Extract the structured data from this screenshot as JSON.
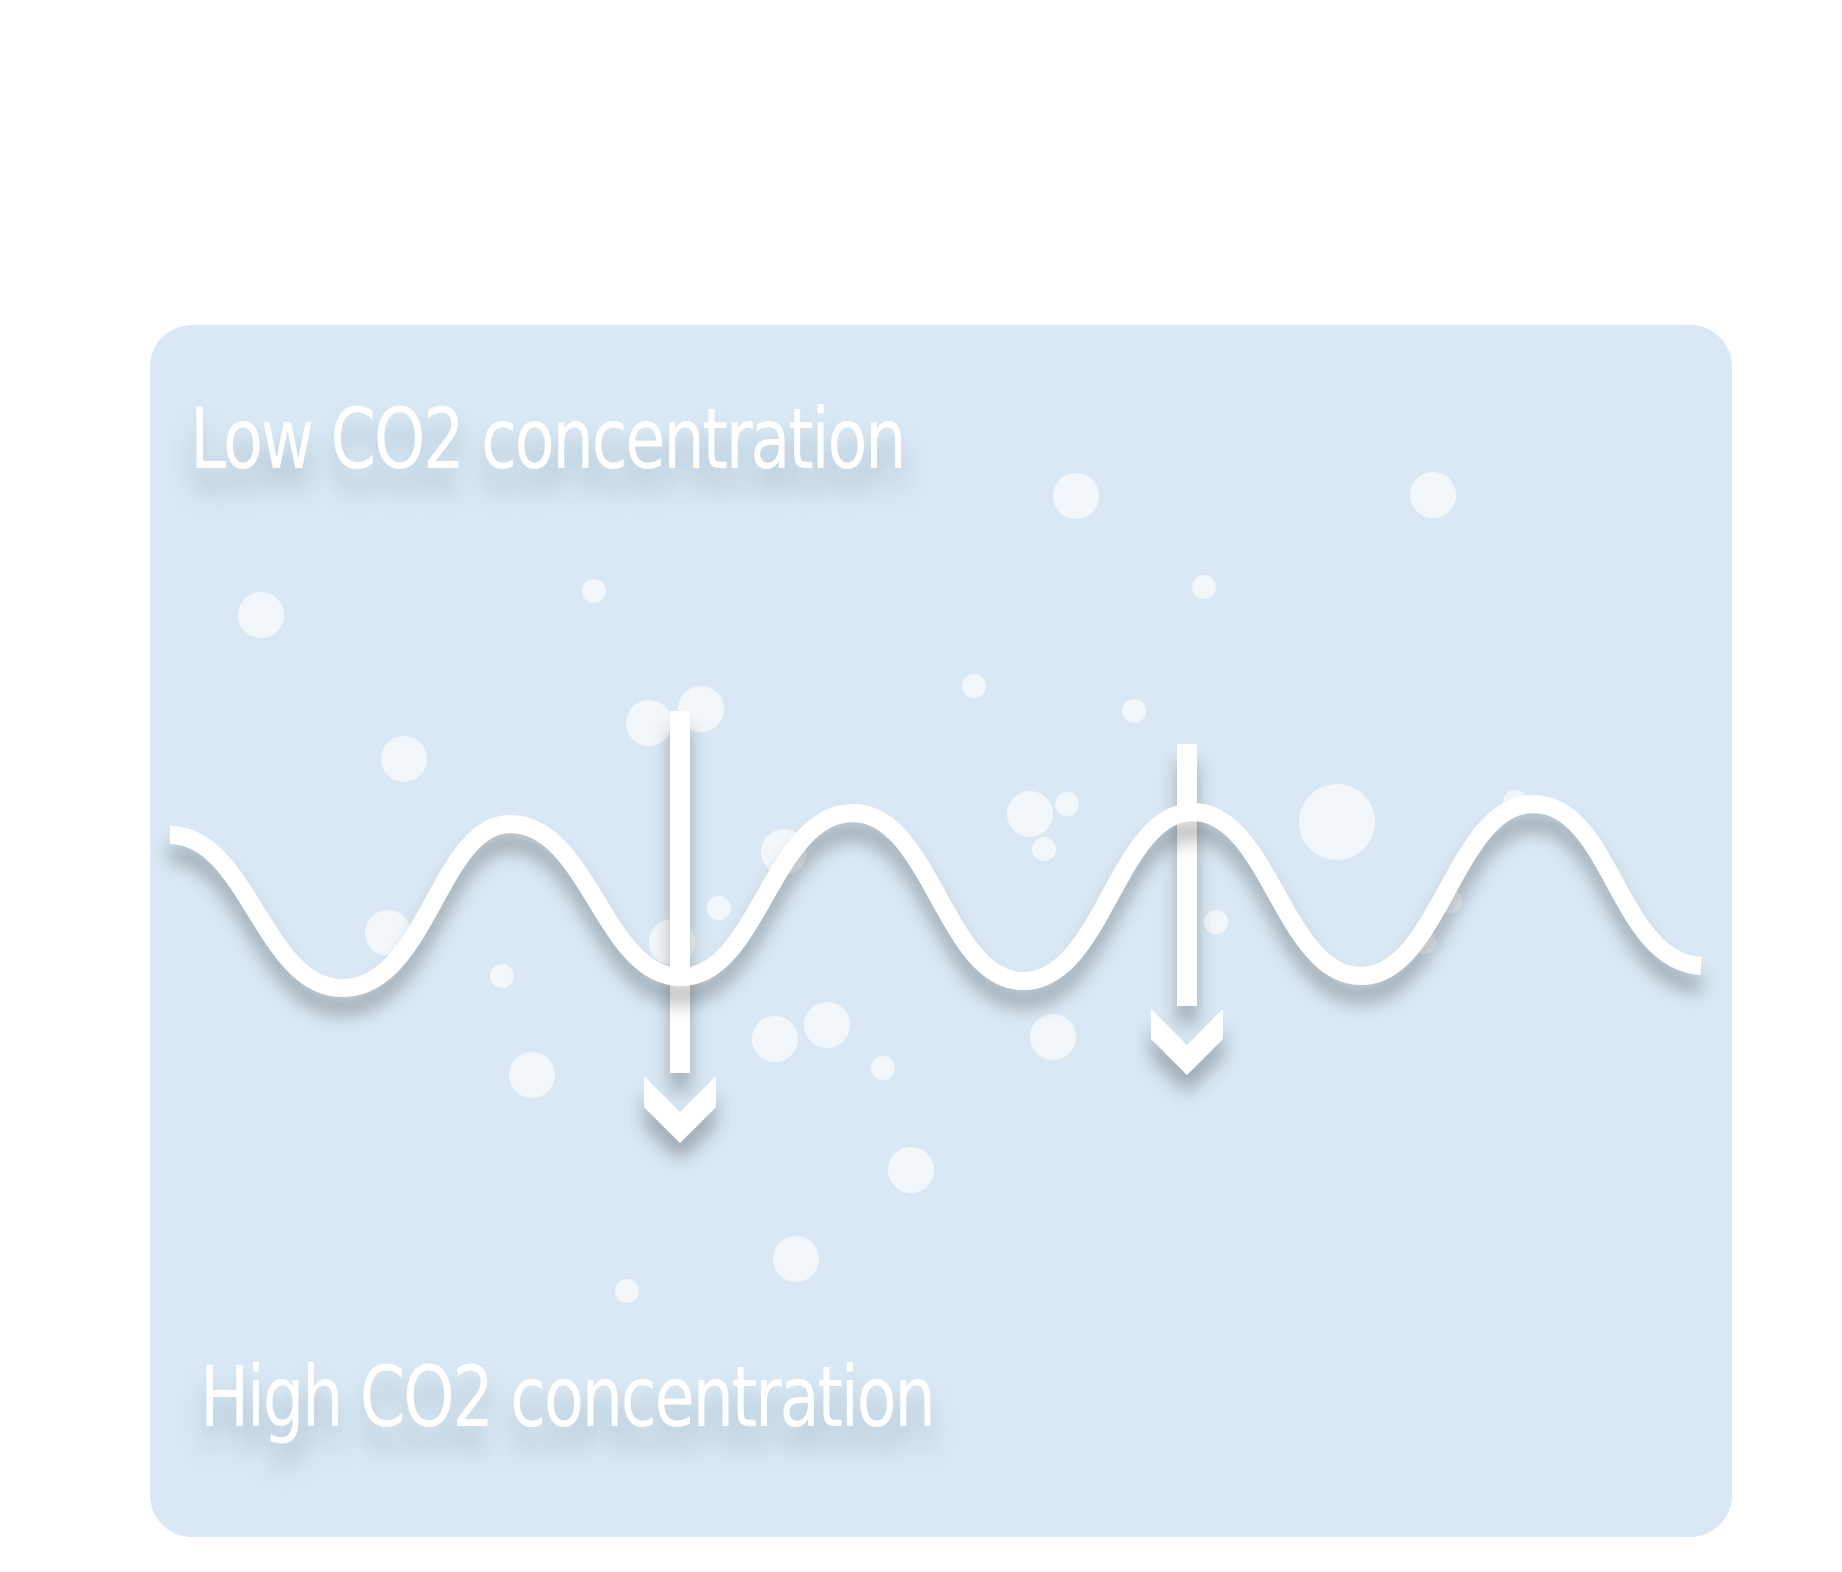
{
  "labels": {
    "low": "Low CO2 concentration",
    "high": "High CO2 concentration"
  },
  "colors": {
    "panel": "#d9e8f4",
    "foreground": "#ffffff"
  },
  "elements": {
    "wave": "wavy-surface-line",
    "arrows": [
      "arrow-down-icon",
      "arrow-down-icon"
    ],
    "particles": "co2-bubble"
  }
}
